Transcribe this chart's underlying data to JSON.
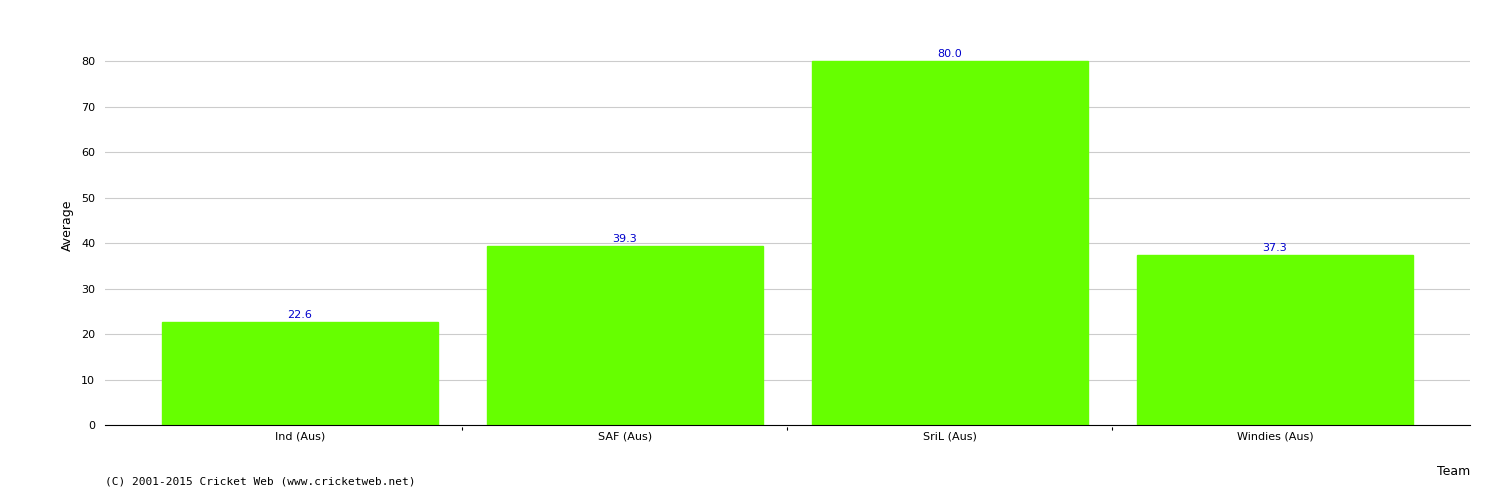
{
  "categories": [
    "Ind (Aus)",
    "SAF (Aus)",
    "SriL (Aus)",
    "Windies (Aus)"
  ],
  "values": [
    22.6,
    39.3,
    80.0,
    37.3
  ],
  "bar_color": "#66ff00",
  "bar_edge_color": "#66ff00",
  "xlabel": "Team",
  "ylabel": "Average",
  "ylim": [
    0,
    88
  ],
  "yticks": [
    0,
    10,
    20,
    30,
    40,
    50,
    60,
    70,
    80
  ],
  "label_color": "#0000cc",
  "label_fontsize": 8,
  "axis_fontsize": 9,
  "tick_fontsize": 8,
  "background_color": "#ffffff",
  "grid_color": "#cccccc",
  "copyright_text": "(C) 2001-2015 Cricket Web (www.cricketweb.net)",
  "copyright_fontsize": 8,
  "copyright_color": "#000000"
}
